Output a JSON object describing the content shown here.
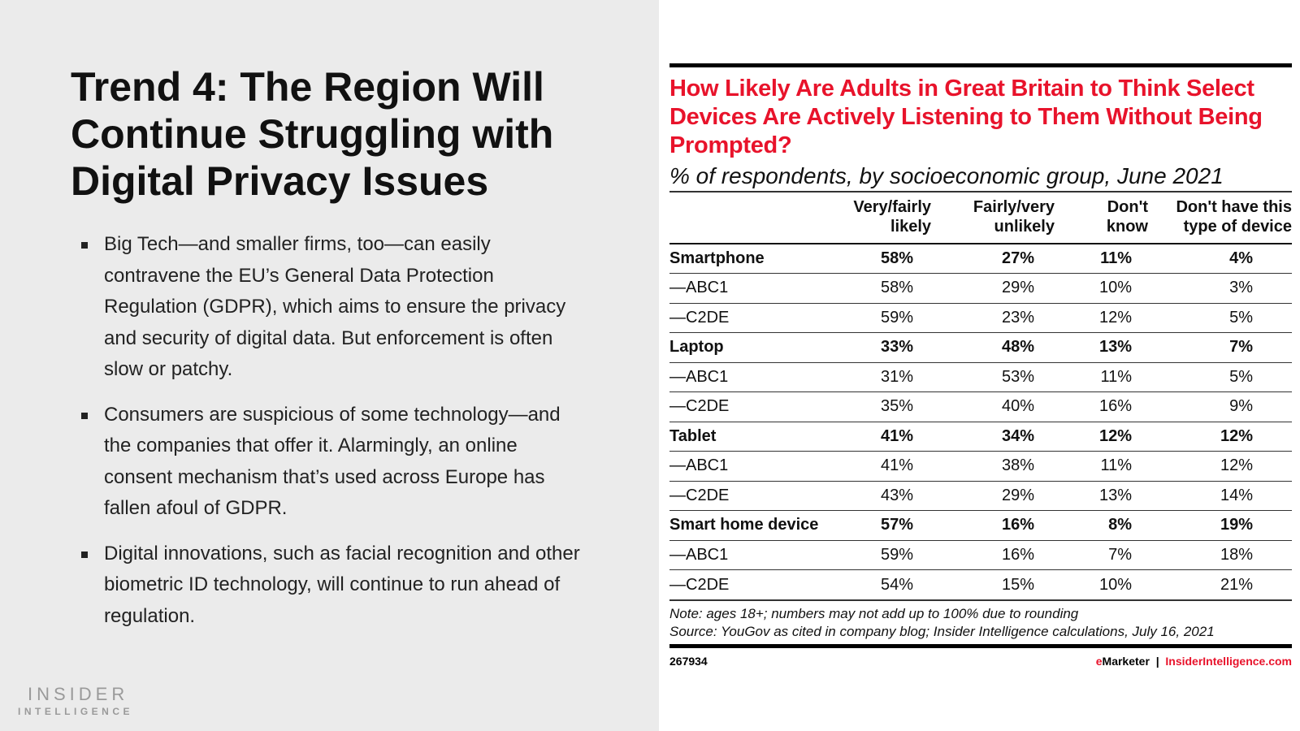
{
  "slide": {
    "title": "Trend 4: The Region Will Continue Struggling with Digital Privacy Issues",
    "bullets": [
      "Big Tech—and smaller firms, too—can easily contravene the EU’s General Data Protection Regulation (GDPR), which aims to ensure the privacy and security of digital data. But enforcement is often slow or patchy.",
      "Consumers are suspicious of some technology—and the companies that offer it. Alarmingly, an online consent mechanism that’s used across Europe has fallen afoul of GDPR.",
      "Digital innovations, such as facial recognition and other biometric ID technology, will continue to run ahead of regulation."
    ],
    "logo": {
      "line1": "INSIDER",
      "line2": "INTELLIGENCE"
    }
  },
  "chart_data": {
    "type": "table",
    "title": "How Likely Are Adults in Great Britain to Think Select Devices Are Actively Listening to Them Without Being Prompted?",
    "subtitle": "% of respondents, by socioeconomic group, June 2021",
    "columns": [
      "Very/fairly likely",
      "Fairly/very unlikely",
      "Don't know",
      "Don't have this type of device"
    ],
    "rows": [
      {
        "label": "Smartphone",
        "bold": true,
        "values": [
          "58%",
          "27%",
          "11%",
          "4%"
        ]
      },
      {
        "label": "—ABC1",
        "bold": false,
        "values": [
          "58%",
          "29%",
          "10%",
          "3%"
        ]
      },
      {
        "label": "—C2DE",
        "bold": false,
        "values": [
          "59%",
          "23%",
          "12%",
          "5%"
        ]
      },
      {
        "label": "Laptop",
        "bold": true,
        "values": [
          "33%",
          "48%",
          "13%",
          "7%"
        ]
      },
      {
        "label": "—ABC1",
        "bold": false,
        "values": [
          "31%",
          "53%",
          "11%",
          "5%"
        ]
      },
      {
        "label": "—C2DE",
        "bold": false,
        "values": [
          "35%",
          "40%",
          "16%",
          "9%"
        ]
      },
      {
        "label": "Tablet",
        "bold": true,
        "values": [
          "41%",
          "34%",
          "12%",
          "12%"
        ]
      },
      {
        "label": "—ABC1",
        "bold": false,
        "values": [
          "41%",
          "38%",
          "11%",
          "12%"
        ]
      },
      {
        "label": "—C2DE",
        "bold": false,
        "values": [
          "43%",
          "29%",
          "13%",
          "14%"
        ]
      },
      {
        "label": "Smart home device",
        "bold": true,
        "values": [
          "57%",
          "16%",
          "8%",
          "19%"
        ]
      },
      {
        "label": "—ABC1",
        "bold": false,
        "values": [
          "59%",
          "16%",
          "7%",
          "18%"
        ]
      },
      {
        "label": "—C2DE",
        "bold": false,
        "values": [
          "54%",
          "15%",
          "10%",
          "21%"
        ]
      }
    ],
    "note": "Note: ages 18+; numbers may not add up to 100% due to rounding",
    "source": "Source: YouGov as cited in company blog; Insider Intelligence calculations, July 16, 2021",
    "chart_id": "267934",
    "brand": {
      "e": "e",
      "marketer": "Marketer",
      "sep": "|",
      "site": "InsiderIntelligence.com"
    },
    "accent_color": "#e8132b"
  }
}
